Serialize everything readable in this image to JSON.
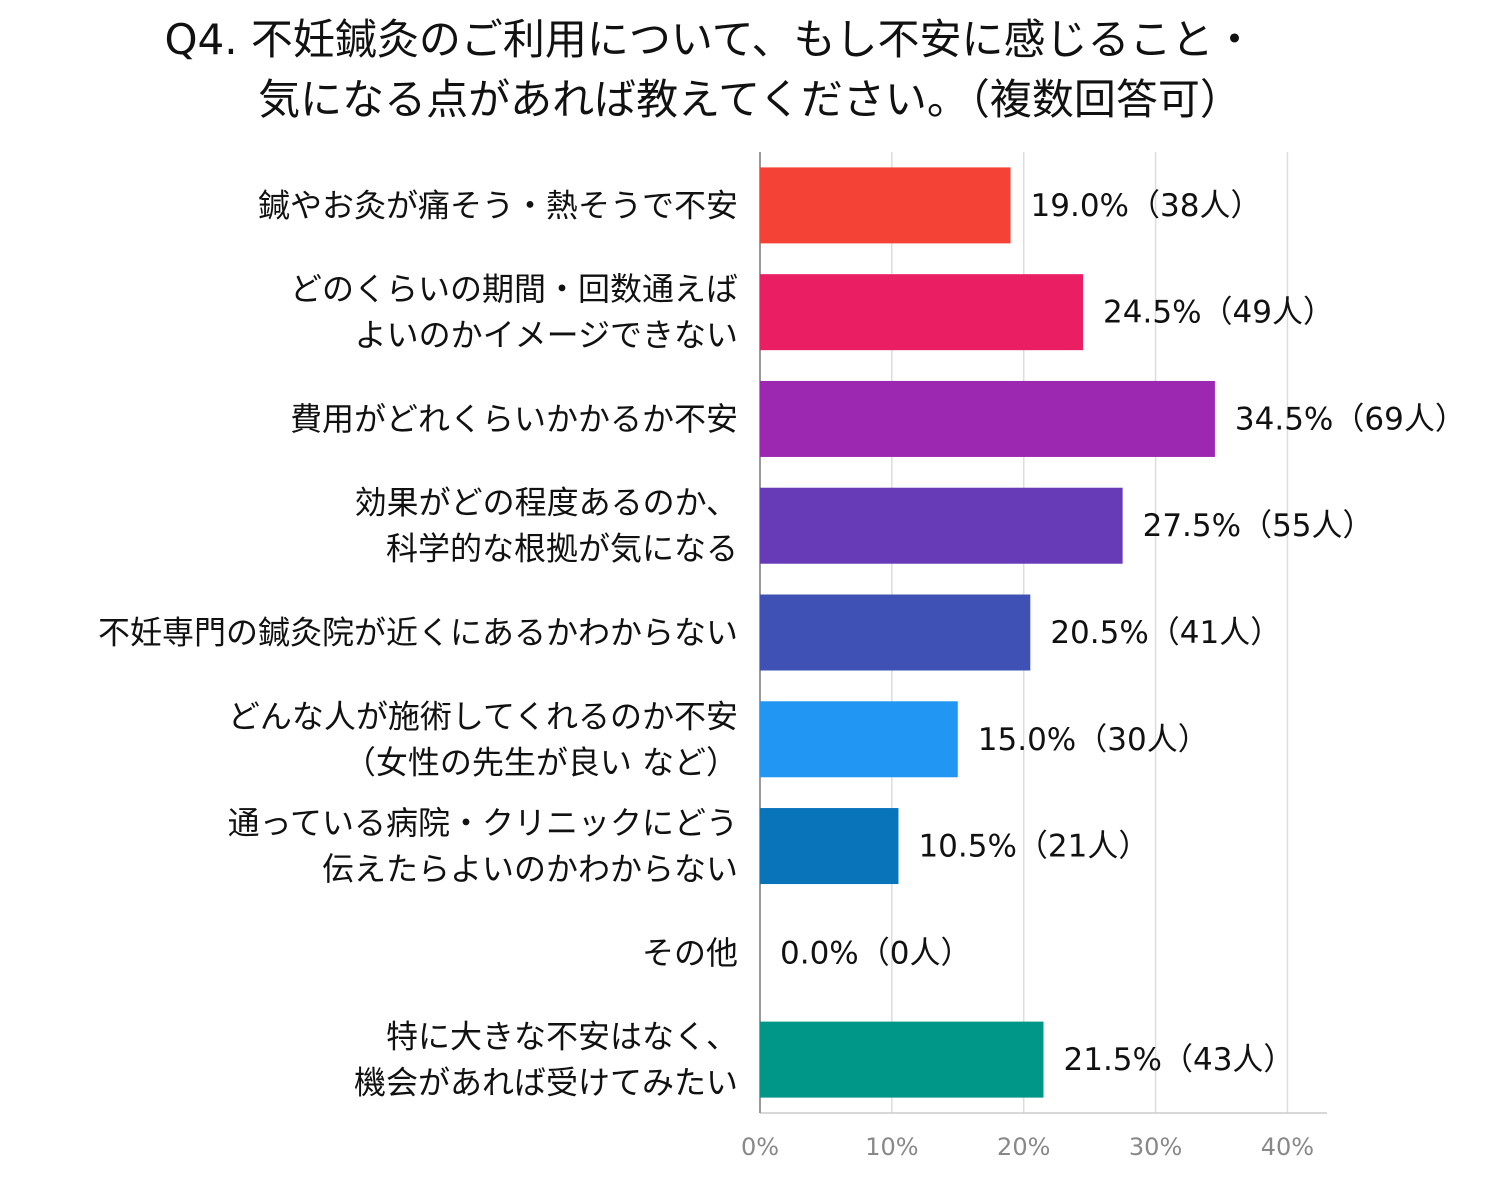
{
  "chart_data": {
    "type": "bar",
    "orientation": "horizontal",
    "title": "Q4. 不妊鍼灸のご利用について、もし不安に感じること・\n気になる点があれば教えてください。（複数回答可）",
    "categories": [
      "鍼やお灸が痛そう・熱そうで不安",
      "どのくらいの期間・回数通えば\nよいのかイメージできない",
      "費用がどれくらいかかるか不安",
      "効果がどの程度あるのか、\n科学的な根拠が気になる",
      "不妊専門の鍼灸院が近くにあるかわからない",
      "どんな人が施術してくれるのか不安\n（女性の先生が良い など）",
      "通っている病院・クリニックにどう\n伝えたらよいのかわからない",
      "その他",
      "特に大きな不安はなく、\n機会があれば受けてみたい"
    ],
    "values": [
      19.0,
      24.5,
      34.5,
      27.5,
      20.5,
      15.0,
      10.5,
      0.0,
      21.5
    ],
    "value_labels": [
      "19.0%（38人）",
      "24.5%（49人）",
      "34.5%（69人）",
      "27.5%（55人）",
      "20.5%（41人）",
      "15.0%（30人）",
      "10.5%（21人）",
      "0.0%（0人）",
      "21.5%（43人）"
    ],
    "colors": [
      "#f44336",
      "#e91e63",
      "#9c27b0",
      "#673ab7",
      "#3f51b5",
      "#2196f3",
      "#0a74bb",
      "#9e9e9e",
      "#009688"
    ],
    "xlim": [
      0,
      43
    ],
    "xticks": [
      {
        "value": 0,
        "label": "0%"
      },
      {
        "value": 10,
        "label": "10%"
      },
      {
        "value": 20,
        "label": "20%"
      },
      {
        "value": 30,
        "label": "30%"
      },
      {
        "value": 40,
        "label": "40%"
      }
    ],
    "grid": true
  }
}
